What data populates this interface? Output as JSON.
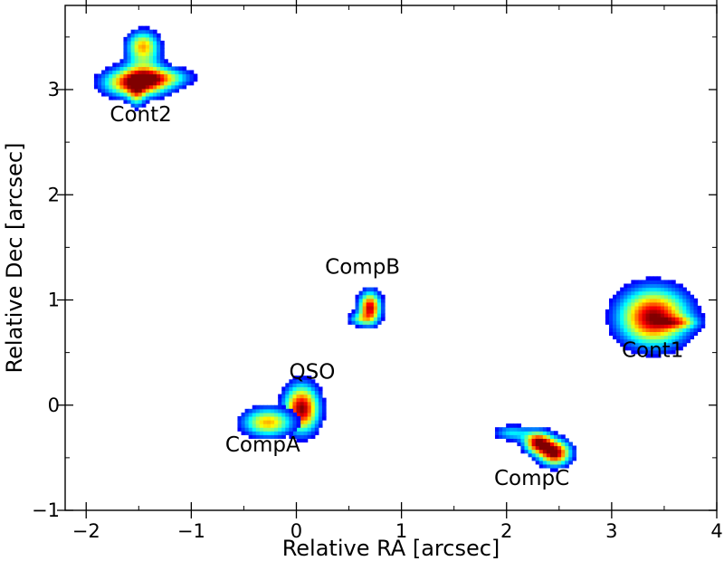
{
  "chart_data": {
    "type": "scatter",
    "title": "",
    "xlabel": "Relative RA [arcsec]",
    "ylabel": "Relative Dec [arcsec]",
    "xlim": [
      -2.2,
      4.0
    ],
    "ylim": [
      -1.0,
      3.8
    ],
    "xticks": [
      -2,
      -1,
      0,
      1,
      2,
      3,
      4
    ],
    "xtick_labels": [
      "−2",
      "−1",
      "0",
      "1",
      "2",
      "3",
      "4"
    ],
    "yticks": [
      -1,
      0,
      1,
      2,
      3
    ],
    "ytick_labels": [
      "−1",
      "0",
      "1",
      "2",
      "3"
    ],
    "grid": false,
    "colormap": "jet",
    "sources": [
      {
        "name": "QSO",
        "x": 0.05,
        "y": -0.03,
        "label_x": 0.15,
        "label_y": 0.25
      },
      {
        "name": "CompA",
        "x": -0.27,
        "y": -0.17,
        "label_x": -0.32,
        "label_y": -0.44
      },
      {
        "name": "CompB",
        "x": 0.7,
        "y": 0.93,
        "label_x": 0.63,
        "label_y": 1.25
      },
      {
        "name": "CompC",
        "x": 2.4,
        "y": -0.4,
        "label_x": 2.24,
        "label_y": -0.76
      },
      {
        "name": "Cont1",
        "x": 3.4,
        "y": 0.84,
        "label_x": 3.39,
        "label_y": 0.46
      },
      {
        "name": "Cont2",
        "x": -1.52,
        "y": 3.08,
        "label_x": -1.48,
        "label_y": 2.7
      }
    ],
    "blobs": [
      {
        "source": "QSO",
        "x": 0.05,
        "y": -0.03,
        "sx": 0.11,
        "sy": 0.15,
        "peak": 1.0
      },
      {
        "source": "CompA",
        "x": -0.27,
        "y": -0.16,
        "sx": 0.16,
        "sy": 0.09,
        "peak": 0.7
      },
      {
        "source": "CompB",
        "x": 0.7,
        "y": 0.93,
        "sx": 0.07,
        "sy": 0.1,
        "peak": 0.95
      },
      {
        "source": "CompB",
        "x": 0.6,
        "y": 0.82,
        "sx": 0.08,
        "sy": 0.04,
        "peak": 0.35
      },
      {
        "source": "CompC",
        "x": 2.3,
        "y": -0.35,
        "sx": 0.09,
        "sy": 0.07,
        "peak": 0.95
      },
      {
        "source": "CompC",
        "x": 2.46,
        "y": -0.45,
        "sx": 0.1,
        "sy": 0.08,
        "peak": 1.0
      },
      {
        "source": "CompC",
        "x": 2.05,
        "y": -0.26,
        "sx": 0.12,
        "sy": 0.05,
        "peak": 0.35
      },
      {
        "source": "Cont1",
        "x": 3.4,
        "y": 0.84,
        "sx": 0.22,
        "sy": 0.18,
        "peak": 1.0
      },
      {
        "source": "Cont1",
        "x": 3.65,
        "y": 0.79,
        "sx": 0.12,
        "sy": 0.04,
        "peak": 0.35
      },
      {
        "source": "Cont2",
        "x": -1.52,
        "y": 3.07,
        "sx": 0.2,
        "sy": 0.09,
        "peak": 1.0
      },
      {
        "source": "Cont2",
        "x": -1.46,
        "y": 3.43,
        "sx": 0.1,
        "sy": 0.09,
        "peak": 0.6
      },
      {
        "source": "Cont2",
        "x": -1.25,
        "y": 3.12,
        "sx": 0.18,
        "sy": 0.06,
        "peak": 0.4
      },
      {
        "source": "Cont2",
        "x": -1.52,
        "y": 2.95,
        "sx": 0.05,
        "sy": 0.09,
        "peak": 0.35
      },
      {
        "source": "Cont2",
        "x": -1.45,
        "y": 3.25,
        "sx": 0.12,
        "sy": 0.12,
        "peak": 0.32
      }
    ]
  }
}
